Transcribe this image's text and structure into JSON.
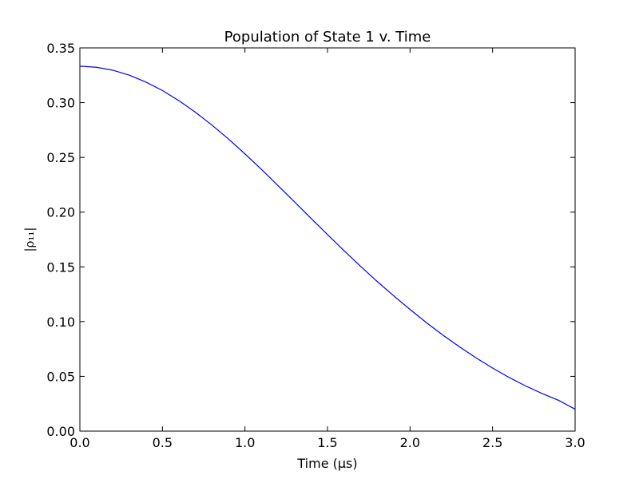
{
  "chart_data": {
    "type": "line",
    "title": "Population of State 1 v. Time",
    "xlabel": "Time (μs)",
    "ylabel": "|ρ₁₁|",
    "xlim": [
      0.0,
      3.0
    ],
    "ylim": [
      0.0,
      0.35
    ],
    "xticks": [
      "0.0",
      "0.5",
      "1.0",
      "1.5",
      "2.0",
      "2.5",
      "3.0"
    ],
    "yticks": [
      "0.00",
      "0.05",
      "0.10",
      "0.15",
      "0.20",
      "0.25",
      "0.30",
      "0.35"
    ],
    "grid": false,
    "series": [
      {
        "color": "#0000ff",
        "x": [
          0.0,
          0.1,
          0.2,
          0.3,
          0.4,
          0.5,
          0.6,
          0.7,
          0.8,
          0.9,
          1.0,
          1.1,
          1.2,
          1.3,
          1.4,
          1.5,
          1.6,
          1.7,
          1.8,
          1.9,
          2.0,
          2.1,
          2.2,
          2.3,
          2.4,
          2.5,
          2.6,
          2.7,
          2.8,
          2.9,
          3.0
        ],
        "y": [
          0.3333,
          0.3323,
          0.3296,
          0.3251,
          0.3188,
          0.3111,
          0.3018,
          0.2912,
          0.2795,
          0.2668,
          0.2532,
          0.239,
          0.2243,
          0.2094,
          0.1944,
          0.1795,
          0.1648,
          0.1506,
          0.1368,
          0.1237,
          0.1111,
          0.099,
          0.0876,
          0.0769,
          0.0669,
          0.0576,
          0.049,
          0.0413,
          0.0343,
          0.0281,
          0.02
        ]
      }
    ]
  }
}
